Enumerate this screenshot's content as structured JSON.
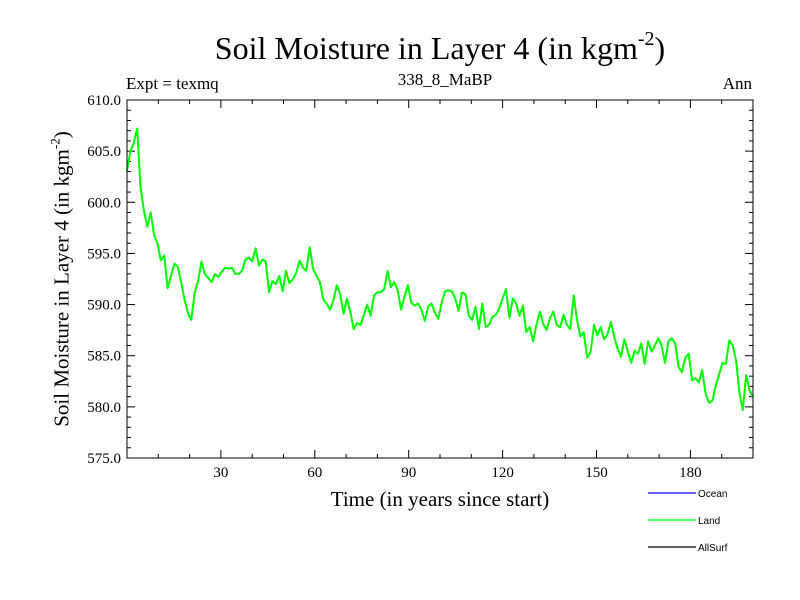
{
  "chart_data": {
    "type": "line",
    "title": "Soil Moisture in Layer 4 (in kgm",
    "title_superscript": "-2",
    "title_suffix": ")",
    "subtitle_left": "Expt = texmq",
    "subtitle_center": "338_8_MaBP",
    "subtitle_right": "Ann",
    "xlabel": "Time (in years since start)",
    "ylabel": "Soil Moisture in Layer 4 (in kgm",
    "ylabel_superscript": "-2",
    "ylabel_suffix": ")",
    "xlim": [
      0,
      200
    ],
    "ylim": [
      575.0,
      610.0
    ],
    "xticks": [
      30,
      60,
      90,
      120,
      150,
      180
    ],
    "yticks": [
      "575.0",
      "580.0",
      "585.0",
      "590.0",
      "595.0",
      "600.0",
      "605.0",
      "610.0"
    ],
    "legend_position": "bottom-right-outside",
    "series": [
      {
        "name": "Ocean",
        "color": "#0000ff",
        "values": []
      },
      {
        "name": "Land",
        "color": "#00ff00",
        "values": [
          603.1,
          605.0,
          605.8,
          607.2,
          601.5,
          599.2,
          597.6,
          599.0,
          596.8,
          596.0,
          594.3,
          594.8,
          591.6,
          592.8,
          594.0,
          593.7,
          592.2,
          590.5,
          589.2,
          588.5,
          591.2,
          592.3,
          594.2,
          593.0,
          592.6,
          592.2,
          593.0,
          592.7,
          593.2,
          593.6,
          593.5,
          593.6,
          593.0,
          593.0,
          593.3,
          594.4,
          594.6,
          594.2,
          595.5,
          593.8,
          594.4,
          594.2,
          591.2,
          592.3,
          592.0,
          592.8,
          591.3,
          593.3,
          592.1,
          592.5,
          593.1,
          594.3,
          593.6,
          593.3,
          595.6,
          593.5,
          592.8,
          592.2,
          590.5,
          590.1,
          589.5,
          590.4,
          591.9,
          591.0,
          589.1,
          590.6,
          589.3,
          587.6,
          588.2,
          588.0,
          589.0,
          590.0,
          588.9,
          590.9,
          591.2,
          591.2,
          591.5,
          593.3,
          591.7,
          592.2,
          591.4,
          589.5,
          590.8,
          591.9,
          590.2,
          589.9,
          590.1,
          589.5,
          588.4,
          589.8,
          590.1,
          589.2,
          588.6,
          590.2,
          591.3,
          591.4,
          591.3,
          590.6,
          589.4,
          591.2,
          591.0,
          588.9,
          588.5,
          589.8,
          587.6,
          590.1,
          587.8,
          588.0,
          588.8,
          589.0,
          589.6,
          590.6,
          591.5,
          588.7,
          590.6,
          590.1,
          588.9,
          589.9,
          587.3,
          587.8,
          586.4,
          588.0,
          589.3,
          588.1,
          587.5,
          588.7,
          589.3,
          588.0,
          587.8,
          589.0,
          588.0,
          587.6,
          590.9,
          588.5,
          586.9,
          587.3,
          584.8,
          585.4,
          588.0,
          587.0,
          587.8,
          586.6,
          587.1,
          588.3,
          586.8,
          585.7,
          584.9,
          586.6,
          585.4,
          584.3,
          585.5,
          585.2,
          586.2,
          584.2,
          586.4,
          585.4,
          586.0,
          586.7,
          586.0,
          584.3,
          586.4,
          586.7,
          586.2,
          583.9,
          583.4,
          584.8,
          585.2,
          582.6,
          582.8,
          582.4,
          583.6,
          581.3,
          580.4,
          580.6,
          582.1,
          583.2,
          584.3,
          584.2,
          586.5,
          586.0,
          584.5,
          581.3,
          579.7,
          583.1,
          581.6,
          580.9
        ]
      },
      {
        "name": "AllSurf",
        "color": "#000000",
        "values": []
      }
    ]
  }
}
